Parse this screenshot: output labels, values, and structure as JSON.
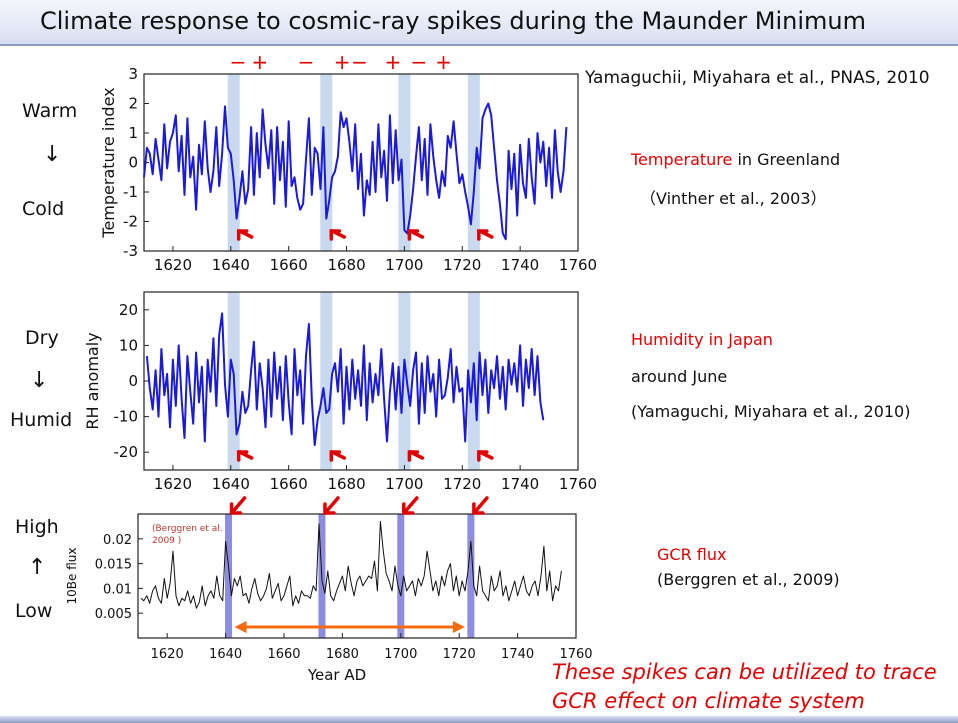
{
  "title": "Climate response to cosmic-ray spikes during the Maunder Minimum",
  "citation": "Yamaguchii, Miyahara et al., PNAS, 2010",
  "signs": [
    "−",
    "+",
    "−",
    "+",
    "−",
    "+",
    "−",
    "+"
  ],
  "sign_years": [
    1642.5,
    1650,
    1666,
    1678.5,
    1684.5,
    1696,
    1705,
    1713.5
  ],
  "spikes": [
    1641,
    1673,
    1700,
    1724
  ],
  "panel1": {
    "warm": "Warm",
    "cold": "Cold",
    "arrow": "↓",
    "info_red": "Temperature",
    "info_rest": " in Greenland",
    "info_ref": "（Vinther et al., 2003）"
  },
  "panel2": {
    "dry": "Dry",
    "humid": "Humid",
    "arrow": "↓",
    "info1": "Humidity in Japan",
    "info2": "around June",
    "info3": "(Yamaguchi, Miyahara et al., 2010)"
  },
  "panel3": {
    "high": "High",
    "low": "Low",
    "arrow": "↑",
    "info1": "GCR flux",
    "info2": "(Berggren et al., 2009)",
    "inset1": "(Berggren et al.",
    "inset2": "2009 )"
  },
  "conclusion1": "These spikes can be utilized to trace",
  "conclusion2": "GCR effect on climate system",
  "colors": {
    "series": "#1a1adb",
    "spike_band": "#c9d9ef",
    "spike_band3": "#8c8ce0",
    "arrow": "#e00000",
    "range_arrow": "#f26b0f"
  },
  "chart_data": [
    {
      "type": "line",
      "ylabel": "Temperature index",
      "xlim": [
        1610,
        1760
      ],
      "ylim": [
        -3,
        3
      ],
      "xticks": [
        1620,
        1640,
        1660,
        1680,
        1700,
        1720,
        1740,
        1760
      ],
      "yticks": [
        -3,
        -2,
        -1,
        0,
        1,
        2,
        3
      ],
      "x_start": 1610,
      "values": [
        -0.5,
        0.5,
        0.3,
        -0.4,
        0.8,
        0.1,
        -0.6,
        1.3,
        -0.2,
        0.7,
        1.0,
        1.6,
        -0.3,
        0.9,
        -1.1,
        1.5,
        -0.5,
        0.2,
        -1.6,
        0.6,
        -0.4,
        1.4,
        -0.2,
        -1.0,
        -0.3,
        1.2,
        -0.8,
        0.3,
        1.9,
        0.5,
        0.3,
        -0.6,
        -1.9,
        -1.2,
        -0.3,
        -1.4,
        -0.9,
        1.2,
        -1.1,
        1.0,
        -0.5,
        1.8,
        0.6,
        -0.2,
        1.1,
        -1.4,
        1.2,
        -0.6,
        0.7,
        -1.5,
        1.4,
        -0.8,
        -0.5,
        -1.2,
        -1.6,
        -1.4,
        0.1,
        1.5,
        -1.1,
        0.5,
        0.3,
        -0.9,
        1.2,
        -1.9,
        -1.3,
        -0.5,
        -0.3,
        0.2,
        1.7,
        1.2,
        1.5,
        0.7,
        -0.3,
        1.3,
        -0.9,
        0.3,
        -1.8,
        -0.6,
        -1.1,
        0.7,
        -1.0,
        1.3,
        -0.5,
        0.4,
        -1.3,
        1.6,
        -0.7,
        1.1,
        -0.6,
        0.1,
        -2.3,
        -2.4,
        -1.8,
        -0.9,
        0.2,
        1.2,
        -0.6,
        0.8,
        -1.1,
        1.3,
        0.2,
        -0.6,
        -1.2,
        -0.3,
        -0.8,
        0.9,
        0.5,
        1.4,
        0.3,
        -0.7,
        -0.4,
        -1.0,
        -1.5,
        -2.1,
        -1.0,
        0.5,
        -0.2,
        1.5,
        1.8,
        2.0,
        1.6,
        0.5,
        -0.6,
        -1.4,
        -2.4,
        -2.6,
        0.4,
        -0.9,
        0.3,
        -1.8,
        0.6,
        -0.7,
        -1.2,
        0.8,
        -0.5,
        -1.4,
        1.0,
        0.0,
        0.7,
        -0.8,
        0.5,
        -1.2,
        1.1,
        -0.3,
        -1.0,
        -0.3,
        1.2
      ]
    },
    {
      "type": "line",
      "ylabel": "RH anomaly",
      "xlim": [
        1610,
        1760
      ],
      "ylim": [
        -25,
        25
      ],
      "xticks": [
        1620,
        1640,
        1660,
        1680,
        1700,
        1720,
        1740,
        1760
      ],
      "yticks": [
        -20,
        -10,
        0,
        10,
        20
      ],
      "x_start": 1611,
      "values": [
        7,
        -2,
        -8,
        3,
        -10,
        9,
        -4,
        2,
        -13,
        6,
        -7,
        10,
        -5,
        -16,
        7,
        -3,
        -12,
        8,
        -6,
        4,
        -17,
        6,
        -3,
        12,
        -7,
        13,
        19,
        -1,
        -10,
        6,
        2,
        -15,
        -12,
        -3,
        -9,
        -7,
        3,
        11,
        -8,
        5,
        -2,
        -13,
        6,
        -10,
        8,
        -5,
        4,
        -11,
        7,
        -6,
        -15,
        9,
        -4,
        3,
        -12,
        7,
        16,
        -5,
        -18,
        -11,
        -7,
        -2,
        -9,
        -8,
        2,
        5,
        -3,
        9,
        -12,
        4,
        -8,
        6,
        -5,
        3,
        -7,
        10,
        -11,
        5,
        -6,
        2,
        -4,
        9,
        -5,
        -17,
        -3,
        5,
        -8,
        4,
        -9,
        6,
        -1,
        -7,
        3,
        8,
        -12,
        5,
        -9,
        7,
        -3,
        2,
        -10,
        6,
        -5,
        -4,
        1,
        9,
        -6,
        4,
        -3,
        -2,
        -17,
        3,
        -6,
        5,
        -11,
        8,
        -4,
        6,
        -9,
        3,
        -2,
        7,
        -5,
        4,
        -8,
        6,
        -1,
        5,
        -3,
        10,
        -7,
        6,
        -2,
        9,
        -4,
        7,
        -6,
        -11
      ]
    },
    {
      "type": "line",
      "ylabel": "10Be flux",
      "xlabel": "Year AD",
      "xlim": [
        1610,
        1760
      ],
      "ylim": [
        0,
        0.025
      ],
      "xticks": [
        1620,
        1640,
        1660,
        1680,
        1700,
        1720,
        1740,
        1760
      ],
      "yticks": [
        0.005,
        0.01,
        0.015,
        0.02
      ],
      "x_start": 1611,
      "values": [
        0.008,
        0.0075,
        0.0085,
        0.007,
        0.0095,
        0.0105,
        0.008,
        0.007,
        0.012,
        0.008,
        0.011,
        0.0175,
        0.0085,
        0.0065,
        0.008,
        0.0075,
        0.0095,
        0.007,
        0.0085,
        0.006,
        0.0072,
        0.0105,
        0.0065,
        0.0085,
        0.0095,
        0.008,
        0.0125,
        0.0085,
        0.0075,
        0.0195,
        0.0145,
        0.0085,
        0.012,
        0.0105,
        0.0125,
        0.0085,
        0.009,
        0.007,
        0.01,
        0.012,
        0.009,
        0.0075,
        0.0085,
        0.01,
        0.013,
        0.008,
        0.0095,
        0.011,
        0.0075,
        0.0085,
        0.0105,
        0.0125,
        0.0065,
        0.0085,
        0.007,
        0.0095,
        0.0085,
        0.0085,
        0.008,
        0.0105,
        0.0095,
        0.023,
        0.0115,
        0.009,
        0.0135,
        0.0085,
        0.0075,
        0.0095,
        0.011,
        0.0125,
        0.0095,
        0.0145,
        0.011,
        0.0085,
        0.0115,
        0.0125,
        0.0105,
        0.0115,
        0.0125,
        0.012,
        0.0155,
        0.0095,
        0.0235,
        0.0175,
        0.013,
        0.0115,
        0.0095,
        0.0145,
        0.0105,
        0.0085,
        0.0125,
        0.0095,
        0.0105,
        0.0115,
        0.0085,
        0.012,
        0.0105,
        0.0125,
        0.0175,
        0.0135,
        0.0095,
        0.0115,
        0.0085,
        0.0125,
        0.0105,
        0.0135,
        0.015,
        0.0095,
        0.0125,
        0.0085,
        0.0115,
        0.0095,
        0.0135,
        0.0195,
        0.0105,
        0.0085,
        0.0145,
        0.0095,
        0.0085,
        0.0075,
        0.0125,
        0.0095,
        0.0105,
        0.0135,
        0.0085,
        0.0105,
        0.0075,
        0.0095,
        0.0115,
        0.0085,
        0.0105,
        0.0125,
        0.0095,
        0.0085,
        0.0105,
        0.0115,
        0.0085,
        0.0125,
        0.0185,
        0.0095,
        0.0135,
        0.0075,
        0.0105,
        0.0095,
        0.0135
      ]
    }
  ]
}
